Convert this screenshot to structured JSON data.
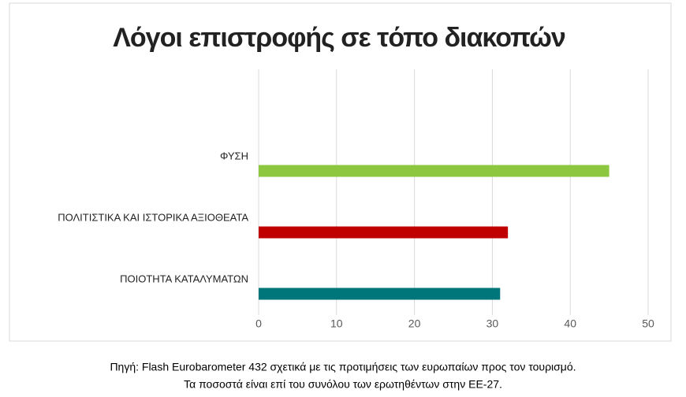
{
  "chart_data": {
    "type": "hbar",
    "title": "Λόγοι επιστροφής σε τόπο διακοπών",
    "categories": [
      "ΦΥΣΗ",
      "ΠΟΛΙΤΙΣΤΙΚΑ ΚΑΙ ΙΣΤΟΡΙΚΑ ΑΞΙΟΘΕΑΤΑ",
      "ΠΟΙΟΤΗΤΑ ΚΑΤΑΛΥΜΑΤΩΝ"
    ],
    "values": [
      45,
      32,
      31
    ],
    "colors": [
      "#8dc63f",
      "#c00000",
      "#00767a"
    ],
    "xlim": [
      0,
      50
    ],
    "xticks": [
      0,
      10,
      20,
      30,
      40,
      50
    ],
    "grid": true
  },
  "footnote": [
    "Πηγή: Flash Eurobarometer 432 σχετικά με τις προτιμήσεις των ευρωπαίων προς τον τουρισμό.",
    "Τα ποσοστά είναι επί του συνόλου των ερωτηθέντων στην ΕΕ-27."
  ]
}
